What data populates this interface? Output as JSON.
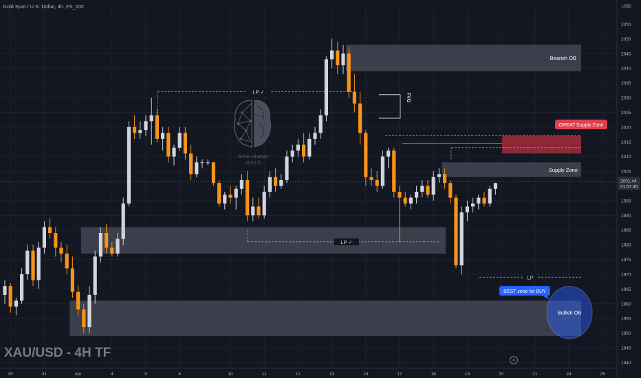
{
  "header": {
    "title": "Gold Spot / U.S. Dollar, 4h, FX_IDC",
    "currency": "USD"
  },
  "watermark": {
    "symbol": "XAU/USD - 4H TF",
    "author_line1": "Armin Shaban",
    "author_line2": "2022 ©"
  },
  "colors": {
    "background": "#131722",
    "bull_candle": "#d1d4dc",
    "bear_candle": "#f7931a",
    "zone_fill": "#4a4e5a",
    "supply_red": "#c2303f",
    "buy_blue": "#2962ff",
    "axis_text": "#b2b5be",
    "grid": "#1e222d"
  },
  "chart_data": {
    "type": "candlestick",
    "title": "Gold Spot / U.S. Dollar, 4h, FX_IDC",
    "ylabel": "USD",
    "ylim": [
      1938,
      2062
    ],
    "y_ticks": [
      1940,
      1945,
      1950,
      1955,
      1960,
      1965,
      1970,
      1975,
      1980,
      1985,
      1990,
      1995,
      2000,
      2005,
      2010,
      2015,
      2020,
      2025,
      2030,
      2035,
      2040,
      2045,
      2050,
      2055
    ],
    "x_ticks": [
      {
        "label": "30",
        "bar": 1
      },
      {
        "label": "31",
        "bar": 7
      },
      {
        "label": "Apr",
        "bar": 13
      },
      {
        "label": "4",
        "bar": 19
      },
      {
        "label": "5",
        "bar": 25
      },
      {
        "label": "6",
        "bar": 31
      },
      {
        "label": "10",
        "bar": 40
      },
      {
        "label": "11",
        "bar": 46
      },
      {
        "label": "12",
        "bar": 52
      },
      {
        "label": "13",
        "bar": 58
      },
      {
        "label": "14",
        "bar": 64
      },
      {
        "label": "17",
        "bar": 70
      },
      {
        "label": "18",
        "bar": 76
      },
      {
        "label": "19",
        "bar": 82
      },
      {
        "label": "20",
        "bar": 88
      },
      {
        "label": "21",
        "bar": 94
      },
      {
        "label": "24",
        "bar": 100
      },
      {
        "label": "25",
        "bar": 106
      }
    ],
    "current_price": "2001.44",
    "countdown": "01:57:45",
    "candles": [
      [
        1963,
        1968,
        1960,
        1966
      ],
      [
        1966,
        1967,
        1957,
        1959
      ],
      [
        1959,
        1962,
        1956,
        1961
      ],
      [
        1961,
        1972,
        1960,
        1970
      ],
      [
        1970,
        1980,
        1968,
        1978
      ],
      [
        1978,
        1980,
        1966,
        1968
      ],
      [
        1968,
        1981,
        1965,
        1979
      ],
      [
        1979,
        1988,
        1977,
        1986
      ],
      [
        1986,
        1989,
        1982,
        1984
      ],
      [
        1984,
        1986,
        1976,
        1979
      ],
      [
        1979,
        1981,
        1974,
        1977
      ],
      [
        1977,
        1980,
        1970,
        1972
      ],
      [
        1972,
        1976,
        1962,
        1964
      ],
      [
        1964,
        1966,
        1956,
        1958
      ],
      [
        1958,
        1960,
        1950,
        1952
      ],
      [
        1952,
        1966,
        1950,
        1963
      ],
      [
        1963,
        1978,
        1960,
        1976
      ],
      [
        1976,
        1986,
        1974,
        1984
      ],
      [
        1984,
        1987,
        1977,
        1979
      ],
      [
        1979,
        1981,
        1976,
        1977
      ],
      [
        1977,
        1984,
        1976,
        1982
      ],
      [
        1982,
        1996,
        1980,
        1994
      ],
      [
        1994,
        2022,
        1993,
        2020
      ],
      [
        2020,
        2024,
        2016,
        2018
      ],
      [
        2018,
        2022,
        2016,
        2019
      ],
      [
        2019,
        2024,
        2017,
        2022
      ],
      [
        2022,
        2030,
        2014,
        2024
      ],
      [
        2024,
        2026,
        2015,
        2016
      ],
      [
        2016,
        2020,
        2012,
        2018
      ],
      [
        2018,
        2020,
        2008,
        2010
      ],
      [
        2010,
        2014,
        2007,
        2013
      ],
      [
        2013,
        2020,
        2012,
        2018
      ],
      [
        2018,
        2020,
        2009,
        2011
      ],
      [
        2011,
        2014,
        2002,
        2004
      ],
      [
        2004,
        2010,
        2003,
        2008
      ],
      [
        2008,
        2009,
        2006,
        2008
      ],
      [
        2008,
        2009,
        2007,
        2008
      ],
      [
        2008,
        2008,
        2000,
        2001
      ],
      [
        2001,
        2002,
        1993,
        1994
      ],
      [
        1994,
        1998,
        1992,
        1997
      ],
      [
        1997,
        2000,
        1994,
        1996
      ],
      [
        1996,
        2000,
        1992,
        1999
      ],
      [
        1999,
        2004,
        1997,
        2002
      ],
      [
        2002,
        2005,
        1988,
        1990
      ],
      [
        1990,
        1996,
        1988,
        1993
      ],
      [
        1993,
        1996,
        1989,
        1990
      ],
      [
        1990,
        2000,
        1989,
        1998
      ],
      [
        1998,
        2005,
        1996,
        2003
      ],
      [
        2003,
        2006,
        1998,
        2000
      ],
      [
        2000,
        2004,
        1999,
        2002
      ],
      [
        2002,
        2012,
        2001,
        2010
      ],
      [
        2010,
        2014,
        2008,
        2012
      ],
      [
        2012,
        2016,
        2010,
        2014
      ],
      [
        2014,
        2018,
        2008,
        2010
      ],
      [
        2010,
        2018,
        2009,
        2016
      ],
      [
        2016,
        2020,
        2014,
        2018
      ],
      [
        2018,
        2026,
        2016,
        2024
      ],
      [
        2024,
        2044,
        2022,
        2043
      ],
      [
        2043,
        2050,
        2040,
        2046
      ],
      [
        2046,
        2049,
        2038,
        2041
      ],
      [
        2041,
        2048,
        2038,
        2045
      ],
      [
        2045,
        2047,
        2030,
        2032
      ],
      [
        2032,
        2038,
        2025,
        2028
      ],
      [
        2028,
        2032,
        2014,
        2018
      ],
      [
        2018,
        2019,
        2000,
        2003
      ],
      [
        2003,
        2006,
        2000,
        2002
      ],
      [
        2002,
        2005,
        1998,
        2000
      ],
      [
        2000,
        2012,
        1999,
        2010
      ],
      [
        2010,
        2013,
        2006,
        2012
      ],
      [
        2012,
        2013,
        1996,
        1998
      ],
      [
        1998,
        2000,
        1981,
        1996
      ],
      [
        1996,
        1998,
        1993,
        1994
      ],
      [
        1994,
        1997,
        1992,
        1996
      ],
      [
        1996,
        2000,
        1994,
        1998
      ],
      [
        1998,
        2002,
        1996,
        2000
      ],
      [
        2000,
        2002,
        1996,
        1997
      ],
      [
        1997,
        2005,
        1995,
        2003
      ],
      [
        2003,
        2006,
        2001,
        2004
      ],
      [
        2004,
        2006,
        1999,
        2001
      ],
      [
        2001,
        2002,
        1994,
        1996
      ],
      [
        1996,
        1997,
        1972,
        1973
      ],
      [
        1973,
        1993,
        1970,
        1991
      ],
      [
        1991,
        1995,
        1988,
        1993
      ],
      [
        1993,
        1996,
        1991,
        1994
      ],
      [
        1994,
        1997,
        1992,
        1996
      ],
      [
        1996,
        1998,
        1993,
        1994
      ],
      [
        1994,
        2000,
        1993,
        1999
      ],
      [
        1999,
        2001,
        1997,
        2001
      ]
    ],
    "zones": [
      {
        "label": "Bearish OB",
        "from_bar": 61,
        "y_top": 2048,
        "y_bottom": 2039
      },
      {
        "label": "GREAT Supply Zone",
        "from_bar": 74,
        "y_top": 2017,
        "y_bottom": 2011
      },
      {
        "label": "Supply Zone",
        "from_bar": 78,
        "y_top": 2008,
        "y_bottom": 2003
      },
      {
        "label": "",
        "from_bar": 14,
        "y_top": 1986,
        "y_bottom": 1977
      },
      {
        "label": "Bullish OB",
        "from_bar": 12,
        "y_top": 1961,
        "y_bottom": 1949
      }
    ],
    "annotations": [
      {
        "text": "LP ✓",
        "price": 2032
      },
      {
        "text": "LP ✓",
        "price": 1981
      },
      {
        "text": "LP",
        "price": 1969
      },
      {
        "text": "FVG",
        "price": 2030
      },
      {
        "text": "GREAT Supply Zone",
        "price": 2020
      },
      {
        "text": "BEST zone for BUY",
        "price": 1963
      }
    ]
  }
}
